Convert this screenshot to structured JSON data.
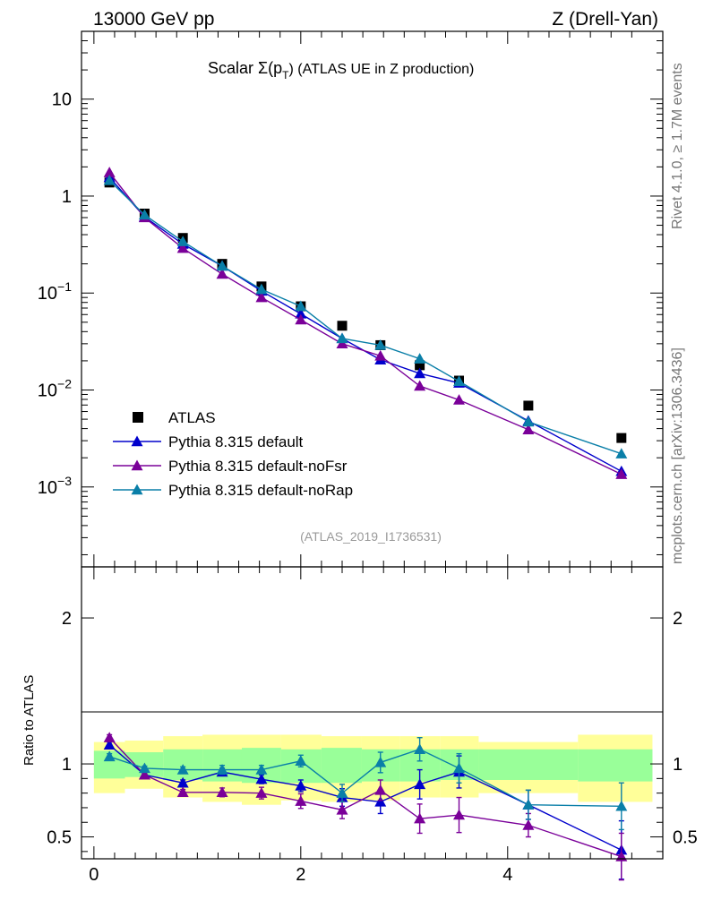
{
  "header": {
    "left": "13000 GeV pp",
    "right": "Z (Drell-Yan)"
  },
  "side_labels": {
    "rivet": "Rivet 4.1.0, ≥ 1.7M events",
    "mcplots": "mcplots.cern.ch [arXiv:1306.3436]"
  },
  "colors": {
    "atlas": "#000000",
    "default": "#0000cc",
    "noFsr": "#7a0099",
    "noRap": "#0a7fa8",
    "band_inner": "#99ff99",
    "band_outer": "#ffff99"
  },
  "chart_data": [
    {
      "type": "scatter",
      "scale": "log",
      "title": "Scalar Σ(p_T) (ATLAS UE in Z production)",
      "title_parts": {
        "pre": "Scalar Σ(p",
        "sub": "T",
        "post": ") (ATLAS UE in Z production)"
      },
      "watermark": "(ATLAS_2019_I1736531)",
      "xlabel": "",
      "ylabel": "",
      "xlim": [
        -0.12,
        5.5
      ],
      "ylim": [
        0.00015,
        50
      ],
      "yticks": [
        {
          "value": 10,
          "base": "10",
          "exp": ""
        },
        {
          "value": 1,
          "base": "1",
          "exp": ""
        },
        {
          "value": 0.1,
          "base": "10",
          "exp": "−1"
        },
        {
          "value": 0.01,
          "base": "10",
          "exp": "−2"
        },
        {
          "value": 0.001,
          "base": "10",
          "exp": "−3"
        }
      ],
      "legend_position": "bottom-left",
      "x": [
        0.15,
        0.49,
        0.86,
        1.24,
        1.62,
        2.0,
        2.4,
        2.77,
        3.15,
        3.53,
        4.2,
        5.1
      ],
      "series": [
        {
          "name": "ATLAS",
          "color_key": "atlas",
          "marker": "square",
          "values": [
            1.38,
            0.66,
            0.37,
            0.2,
            0.117,
            0.073,
            0.046,
            0.029,
            0.018,
            0.0125,
            0.0069,
            0.0032
          ]
        },
        {
          "name": "Pythia 8.315 default",
          "color_key": "default",
          "marker": "triangle",
          "values": [
            1.56,
            0.61,
            0.32,
            0.19,
            0.105,
            0.061,
            0.034,
            0.0205,
            0.0148,
            0.0118,
            0.0048,
            0.00145
          ]
        },
        {
          "name": "Pythia 8.315 default-noFsr",
          "color_key": "noFsr",
          "marker": "triangle",
          "values": [
            1.75,
            0.6,
            0.29,
            0.157,
            0.09,
            0.053,
            0.03,
            0.0225,
            0.011,
            0.0079,
            0.0039,
            0.00135
          ]
        },
        {
          "name": "Pythia 8.315 default-noRap",
          "color_key": "noRap",
          "marker": "triangle",
          "values": [
            1.45,
            0.64,
            0.34,
            0.19,
            0.109,
            0.073,
            0.034,
            0.029,
            0.021,
            0.0123,
            0.0047,
            0.0022
          ]
        }
      ]
    },
    {
      "type": "scatter",
      "scale": "linear",
      "title": "",
      "xlabel": "",
      "ylabel": "Ratio to ATLAS",
      "xlim": [
        -0.12,
        5.5
      ],
      "ylim": [
        0.35,
        2.35
      ],
      "yticks": [
        {
          "value": 2,
          "label": "2"
        },
        {
          "value": 1,
          "label": "1"
        },
        {
          "value": 0.5,
          "label": "0.5"
        }
      ],
      "xticks": [
        {
          "value": 0,
          "label": "0"
        },
        {
          "value": 2,
          "label": "2"
        },
        {
          "value": 4,
          "label": "4"
        }
      ],
      "reference_line": 1,
      "x": [
        0.15,
        0.49,
        0.86,
        1.24,
        1.62,
        2.0,
        2.4,
        2.77,
        3.15,
        3.53,
        4.2,
        5.1
      ],
      "bands": {
        "edges": [
          0.0,
          0.3,
          0.67,
          1.05,
          1.43,
          1.81,
          2.2,
          2.59,
          2.96,
          3.35,
          3.72,
          4.68,
          5.4
        ],
        "inner": [
          [
            0.9,
            1.09
          ],
          [
            0.91,
            1.08
          ],
          [
            0.89,
            1.1
          ],
          [
            0.88,
            1.1
          ],
          [
            0.87,
            1.11
          ],
          [
            0.87,
            1.1
          ],
          [
            0.87,
            1.11
          ],
          [
            0.88,
            1.1
          ],
          [
            0.88,
            1.1
          ],
          [
            0.89,
            1.1
          ],
          [
            0.89,
            1.1
          ],
          [
            0.88,
            1.1
          ]
        ],
        "outer": [
          [
            0.8,
            1.15
          ],
          [
            0.83,
            1.16
          ],
          [
            0.77,
            1.19
          ],
          [
            0.74,
            1.2
          ],
          [
            0.72,
            1.2
          ],
          [
            0.75,
            1.2
          ],
          [
            0.74,
            1.19
          ],
          [
            0.75,
            1.19
          ],
          [
            0.77,
            1.19
          ],
          [
            0.77,
            1.19
          ],
          [
            0.8,
            1.15
          ],
          [
            0.74,
            1.2
          ]
        ]
      },
      "series": [
        {
          "name": "Pythia 8.315 default",
          "color_key": "default",
          "values": [
            1.13,
            0.925,
            0.87,
            0.945,
            0.895,
            0.85,
            0.77,
            0.74,
            0.86,
            0.945,
            0.72,
            0.41
          ],
          "errors": [
            0.02,
            0.015,
            0.02,
            0.025,
            0.03,
            0.04,
            0.06,
            0.08,
            0.1,
            0.11,
            0.1,
            0.2
          ]
        },
        {
          "name": "Pythia 8.315 default-noFsr",
          "color_key": "noFsr",
          "values": [
            1.18,
            0.925,
            0.805,
            0.805,
            0.8,
            0.745,
            0.685,
            0.82,
            0.625,
            0.65,
            0.58,
            0.365
          ],
          "errors": [
            0.02,
            0.015,
            0.02,
            0.03,
            0.04,
            0.05,
            0.06,
            0.07,
            0.1,
            0.12,
            0.08,
            0.16
          ]
        },
        {
          "name": "Pythia 8.315 default-noRap",
          "color_key": "noRap",
          "values": [
            1.05,
            0.97,
            0.96,
            0.96,
            0.96,
            1.02,
            0.8,
            1.01,
            1.1,
            0.97,
            0.72,
            0.71
          ],
          "errors": [
            0.02,
            0.015,
            0.02,
            0.03,
            0.03,
            0.04,
            0.06,
            0.07,
            0.08,
            0.1,
            0.1,
            0.16
          ]
        }
      ]
    }
  ]
}
